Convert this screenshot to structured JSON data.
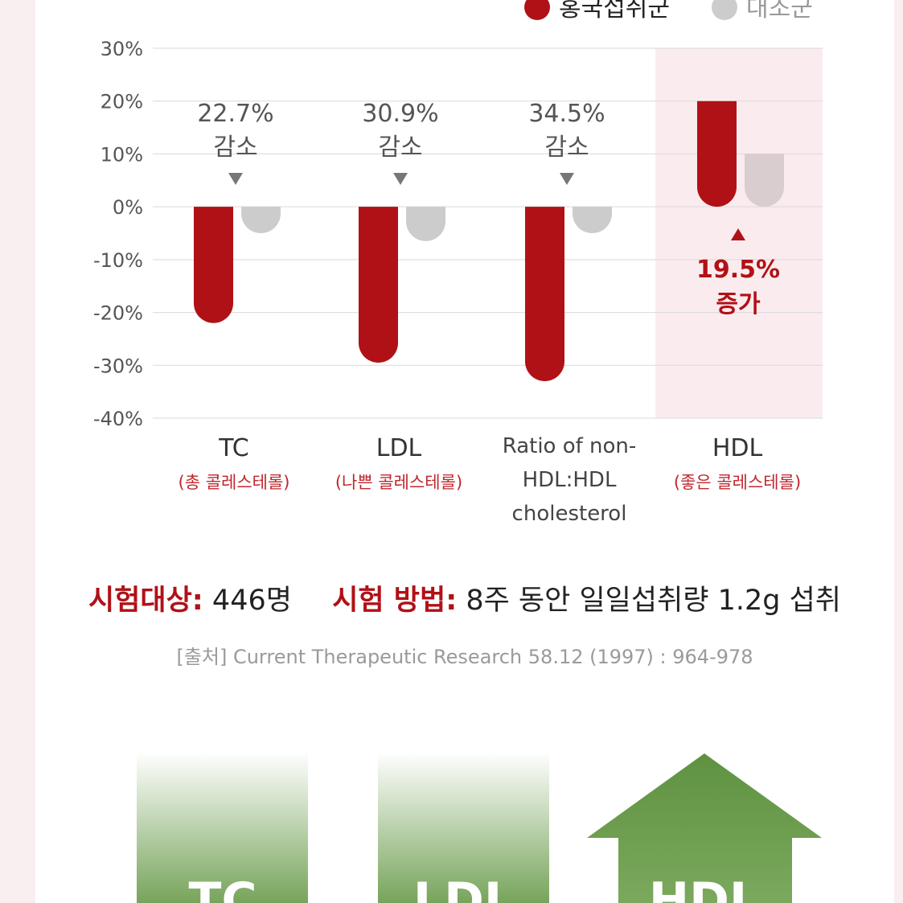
{
  "legend": [
    {
      "label": "홍국섭취군",
      "color": "#b01117"
    },
    {
      "label": "대조군",
      "color": "#cccccc"
    }
  ],
  "chart_data": {
    "type": "bar",
    "y_ticks": [
      "30%",
      "20%",
      "10%",
      "0%",
      "-10%",
      "-20%",
      "-30%",
      "-40%"
    ],
    "ylim": [
      -40,
      30
    ],
    "categories": [
      "TC",
      "LDL",
      "Ratio of non-HDL:HDL cholesterol",
      "HDL"
    ],
    "category_lines": [
      [
        "TC"
      ],
      [
        "LDL"
      ],
      [
        "Ratio of non-",
        "HDL:HDL",
        "cholesterol"
      ],
      [
        "HDL"
      ]
    ],
    "category_subtitles": [
      "(총 콜레스테롤)",
      "(나쁜 콜레스테롤)",
      "",
      "(좋은 콜레스테롤)"
    ],
    "series": [
      {
        "name": "홍국섭취군",
        "color": "#b01117",
        "values": [
          -22,
          -29.5,
          -33,
          20
        ]
      },
      {
        "name": "대조군",
        "color": "#cccccc",
        "values": [
          -5,
          -6.5,
          -5,
          10
        ]
      }
    ],
    "annotations": [
      {
        "value": "22.7%",
        "text": "감소",
        "direction": "down"
      },
      {
        "value": "30.9%",
        "text": "감소",
        "direction": "down"
      },
      {
        "value": "34.5%",
        "text": "감소",
        "direction": "down"
      },
      {
        "value": "19.5%",
        "text": "증가",
        "direction": "up"
      }
    ],
    "highlight_category": "HDL",
    "grid": true
  },
  "study": {
    "subject_label": "시험대상:",
    "subject_value": "446명",
    "method_label": "시험 방법:",
    "method_value": "8주 동안 일일섭취량 1.2g 섭취"
  },
  "source": "[출처] Current Therapeutic Research 58.12 (1997) : 964-978",
  "bottom_graphics": [
    {
      "label": "TC"
    },
    {
      "label": "LDL"
    },
    {
      "label": "HDL"
    }
  ],
  "colors": {
    "accent": "#b01117",
    "control": "#cccccc",
    "highlight_bg": "#faecee",
    "green": "#5e9240"
  }
}
